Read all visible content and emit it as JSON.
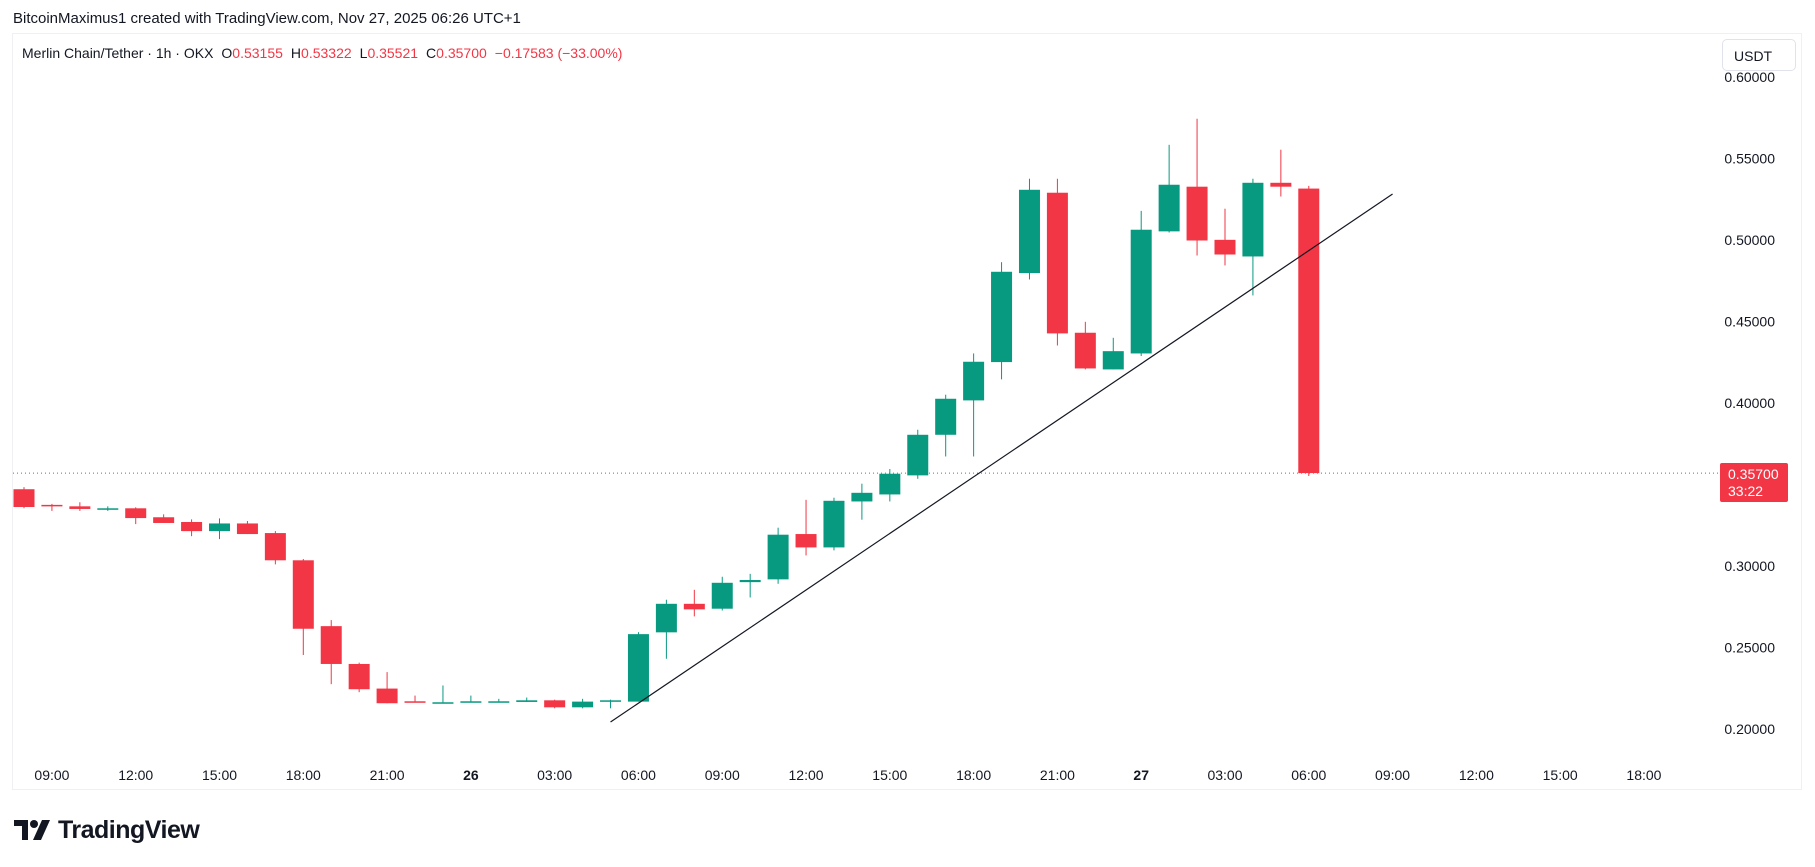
{
  "attribution": "BitcoinMaximus1 created with TradingView.com, Nov 27, 2025 06:26 UTC+1",
  "legend": {
    "symbol": "Merlin Chain/Tether · 1h · OKX",
    "o_label": "O",
    "o_value": "0.53155",
    "h_label": "H",
    "h_value": "0.53322",
    "l_label": "L",
    "l_value": "0.35521",
    "c_label": "C",
    "c_value": "0.35700",
    "change": "−0.17583 (−33.00%)"
  },
  "currency_button": "USDT",
  "last_price": {
    "price": "0.35700",
    "countdown": "33:22"
  },
  "logo": {
    "text": "TradingView"
  },
  "colors": {
    "up": "#089981",
    "down": "#f23645",
    "text": "#131722",
    "trendline": "#131722"
  },
  "chart_data": {
    "type": "candlestick",
    "interval": "1h",
    "ylim": [
      0.19,
      0.605
    ],
    "grid": false,
    "price_ticks": [
      "0.60000",
      "0.55000",
      "0.50000",
      "0.45000",
      "0.40000",
      "0.30000",
      "0.25000",
      "0.20000"
    ],
    "time_ticks": [
      {
        "label": "09:00",
        "t": "25 09"
      },
      {
        "label": "12:00",
        "t": "25 12"
      },
      {
        "label": "15:00",
        "t": "25 15"
      },
      {
        "label": "18:00",
        "t": "25 18"
      },
      {
        "label": "21:00",
        "t": "25 21"
      },
      {
        "label": "26",
        "t": "26 00",
        "bold": true
      },
      {
        "label": "03:00",
        "t": "26 03"
      },
      {
        "label": "06:00",
        "t": "26 06"
      },
      {
        "label": "09:00",
        "t": "26 09"
      },
      {
        "label": "12:00",
        "t": "26 12"
      },
      {
        "label": "15:00",
        "t": "26 15"
      },
      {
        "label": "18:00",
        "t": "26 18"
      },
      {
        "label": "21:00",
        "t": "26 21"
      },
      {
        "label": "27",
        "t": "27 00",
        "bold": true
      },
      {
        "label": "03:00",
        "t": "27 03"
      },
      {
        "label": "06:00",
        "t": "27 06"
      },
      {
        "label": "09:00",
        "t": "27 09"
      },
      {
        "label": "12:00",
        "t": "27 12"
      },
      {
        "label": "15:00",
        "t": "27 15"
      },
      {
        "label": "18:00",
        "t": "27 18"
      }
    ],
    "last_price_line": 0.357,
    "trendline": {
      "start": {
        "t": "26 05",
        "price": 0.2043
      },
      "end": {
        "t": "27 09",
        "price": 0.5282
      }
    },
    "candles_columns": [
      "t",
      "open",
      "high",
      "low",
      "close"
    ],
    "candles": [
      [
        "25 08",
        0.3471,
        0.3484,
        0.3354,
        0.3362
      ],
      [
        "25 09",
        0.3375,
        0.3381,
        0.3338,
        0.3369
      ],
      [
        "25 10",
        0.3366,
        0.3391,
        0.3338,
        0.335
      ],
      [
        "25 11",
        0.335,
        0.3366,
        0.3338,
        0.3354
      ],
      [
        "25 12",
        0.3354,
        0.336,
        0.3257,
        0.3294
      ],
      [
        "25 13",
        0.3299,
        0.3317,
        0.3264,
        0.3264
      ],
      [
        "25 14",
        0.327,
        0.3286,
        0.3183,
        0.3214
      ],
      [
        "25 15",
        0.3214,
        0.3292,
        0.3165,
        0.3261
      ],
      [
        "25 16",
        0.3261,
        0.3276,
        0.3196,
        0.3196
      ],
      [
        "25 17",
        0.3202,
        0.3214,
        0.301,
        0.3035
      ],
      [
        "25 18",
        0.3035,
        0.3043,
        0.2454,
        0.2615
      ],
      [
        "25 19",
        0.2631,
        0.2668,
        0.2275,
        0.2399
      ],
      [
        "25 20",
        0.2399,
        0.2407,
        0.2226,
        0.2244
      ],
      [
        "25 21",
        0.2248,
        0.2349,
        0.2158,
        0.2158
      ],
      [
        "25 22",
        0.217,
        0.2205,
        0.2166,
        0.2166
      ],
      [
        "25 23",
        0.216,
        0.2267,
        0.216,
        0.2164
      ],
      [
        "26 00",
        0.2166,
        0.2205,
        0.2166,
        0.217
      ],
      [
        "26 01",
        0.2166,
        0.2185,
        0.2164,
        0.217
      ],
      [
        "26 02",
        0.2166,
        0.2193,
        0.2166,
        0.2176
      ],
      [
        "26 03",
        0.2176,
        0.218,
        0.2127,
        0.2133
      ],
      [
        "26 04",
        0.2133,
        0.2185,
        0.2127,
        0.2168
      ],
      [
        "26 05",
        0.2168,
        0.218,
        0.2127,
        0.2176
      ],
      [
        "26 06",
        0.2168,
        0.2594,
        0.2168,
        0.2582
      ],
      [
        "26 07",
        0.2593,
        0.2793,
        0.2431,
        0.2768
      ],
      [
        "26 08",
        0.2768,
        0.2854,
        0.2691,
        0.2734
      ],
      [
        "26 09",
        0.2738,
        0.2934,
        0.2727,
        0.2897
      ],
      [
        "26 10",
        0.2901,
        0.2952,
        0.2807,
        0.2914
      ],
      [
        "26 11",
        0.2918,
        0.3235,
        0.2891,
        0.3192
      ],
      [
        "26 12",
        0.3196,
        0.3406,
        0.3065,
        0.3114
      ],
      [
        "26 13",
        0.3114,
        0.3419,
        0.3096,
        0.34
      ],
      [
        "26 14",
        0.3396,
        0.3505,
        0.3284,
        0.3449
      ],
      [
        "26 15",
        0.3439,
        0.3595,
        0.3396,
        0.3566
      ],
      [
        "26 16",
        0.3556,
        0.3836,
        0.3535,
        0.3805
      ],
      [
        "26 17",
        0.3805,
        0.4051,
        0.3672,
        0.4026
      ],
      [
        "26 18",
        0.4016,
        0.4304,
        0.3672,
        0.4253
      ],
      [
        "26 19",
        0.4251,
        0.4864,
        0.4145,
        0.4805
      ],
      [
        "26 20",
        0.4797,
        0.5376,
        0.4758,
        0.5308
      ],
      [
        "26 21",
        0.529,
        0.5376,
        0.4353,
        0.4427
      ],
      [
        "26 22",
        0.4431,
        0.4498,
        0.4206,
        0.4212
      ],
      [
        "26 23",
        0.4206,
        0.44,
        0.4206,
        0.4318
      ],
      [
        "27 00",
        0.4304,
        0.5179,
        0.4288,
        0.5063
      ],
      [
        "27 01",
        0.5053,
        0.5584,
        0.5046,
        0.5339
      ],
      [
        "27 02",
        0.5327,
        0.5744,
        0.4905,
        0.4997
      ],
      [
        "27 03",
        0.5001,
        0.5192,
        0.4844,
        0.4911
      ],
      [
        "27 04",
        0.4899,
        0.5376,
        0.466,
        0.5351
      ],
      [
        "27 05",
        0.5351,
        0.5554,
        0.5267,
        0.5327
      ],
      [
        "27 06",
        0.53155,
        0.53322,
        0.35521,
        0.357
      ]
    ]
  }
}
